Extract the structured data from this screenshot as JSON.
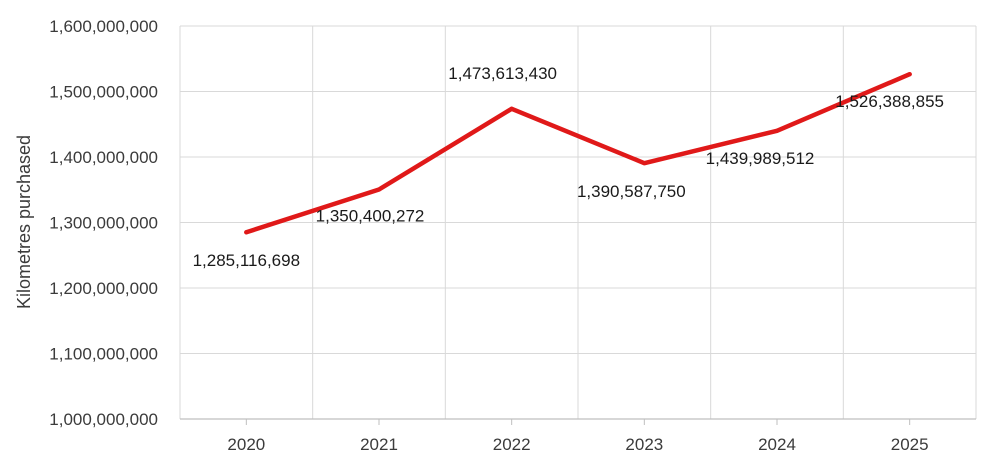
{
  "chart_data": {
    "type": "line",
    "title": "",
    "xlabel": "",
    "ylabel": "Kilometres purchased",
    "ylim": [
      1000000000,
      1600000000
    ],
    "ytick_step": 100000000,
    "categories": [
      "2020",
      "2021",
      "2022",
      "2023",
      "2024",
      "2025"
    ],
    "series": [
      {
        "values": [
          1285116698,
          1350400272,
          1473613430,
          1390587750,
          1439989512,
          1526388855
        ],
        "labels": [
          "1,285,116,698",
          "1,350,400,272",
          "1,473,613,430",
          "1,390,587,750",
          "1,439,989,512",
          "1,526,388,855"
        ]
      }
    ],
    "yticks": [
      "1,000,000,000",
      "1,100,000,000",
      "1,200,000,000",
      "1,300,000,000",
      "1,400,000,000",
      "1,500,000,000",
      "1,600,000,000"
    ],
    "grid": true,
    "legend": "none",
    "colors": {
      "line": "#e01919",
      "grid": "#d9d9d9",
      "axis": "#bfbfbf"
    }
  }
}
